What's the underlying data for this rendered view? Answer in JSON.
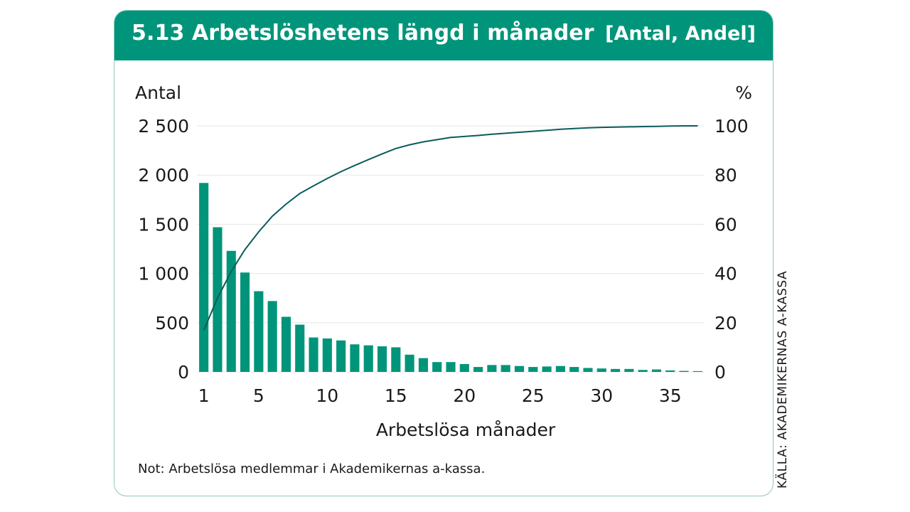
{
  "header": {
    "title": "5.13  Arbetslöshetens längd i månader",
    "unit_label": "[Antal, Andel]"
  },
  "note": "Not: Arbetslösa medlemmar i Akademikernas a-kassa.",
  "source": "KÄLLA: AKADEMIKERNAS A-KASSA",
  "colors": {
    "header_bg": "#00957a",
    "bar": "#00957a",
    "line": "#0b5b5c",
    "border": "#8fc9bf"
  },
  "chart_data": {
    "type": "bar",
    "title": "5.13  Arbetslöshetens längd i månader",
    "xlabel": "Arbetslösa månader",
    "ylabel_left": "Antal",
    "ylabel_right": "%",
    "x_tick_labels": [
      "1",
      "5",
      "10",
      "15",
      "20",
      "25",
      "30",
      "35"
    ],
    "y_left_ticks": [
      "0",
      "500",
      "1 000",
      "1 500",
      "2 000",
      "2 500"
    ],
    "y_right_ticks": [
      "0",
      "20",
      "40",
      "60",
      "80",
      "100"
    ],
    "ylim_left": [
      0,
      2500
    ],
    "ylim_right": [
      0,
      100
    ],
    "grid": true,
    "x": [
      1,
      2,
      3,
      4,
      5,
      6,
      7,
      8,
      9,
      10,
      11,
      12,
      13,
      14,
      15,
      16,
      17,
      18,
      19,
      20,
      21,
      22,
      23,
      24,
      25,
      26,
      27,
      28,
      29,
      30,
      31,
      32,
      33,
      34,
      35,
      36,
      37
    ],
    "series": [
      {
        "type": "bar",
        "axis": "left",
        "values": [
          1920,
          1470,
          1230,
          1010,
          820,
          720,
          560,
          480,
          350,
          340,
          320,
          280,
          270,
          260,
          250,
          175,
          140,
          100,
          100,
          80,
          50,
          70,
          70,
          60,
          50,
          55,
          60,
          50,
          40,
          35,
          30,
          30,
          20,
          25,
          15,
          10,
          8
        ]
      },
      {
        "type": "line",
        "axis": "right",
        "values": [
          16.9,
          30.0,
          40.8,
          49.7,
          56.9,
          63.3,
          68.2,
          72.5,
          75.6,
          78.6,
          81.4,
          83.9,
          86.3,
          88.6,
          90.8,
          92.3,
          93.5,
          94.4,
          95.3,
          95.7,
          96.1,
          96.6,
          97.0,
          97.4,
          97.8,
          98.2,
          98.6,
          98.9,
          99.2,
          99.4,
          99.5,
          99.6,
          99.7,
          99.8,
          99.9,
          100.0,
          100.0
        ]
      }
    ]
  }
}
